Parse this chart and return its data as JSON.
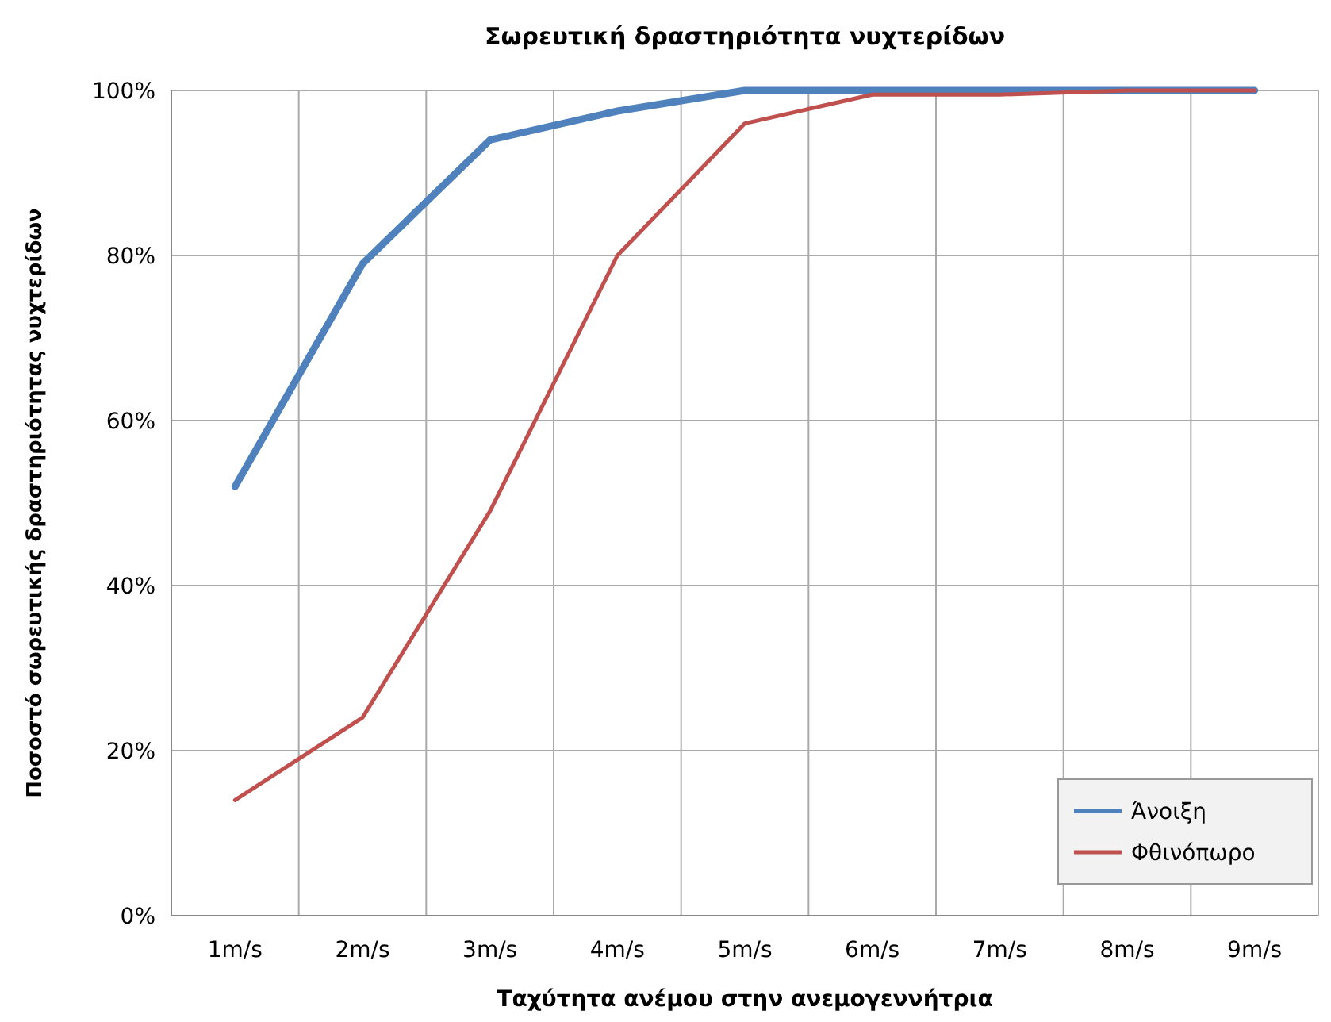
{
  "chart_data": {
    "type": "line",
    "title": "Σωρευτική δραστηριότητα νυχτερίδων",
    "xlabel": "Ταχύτητα ανέμου στην ανεμογεννήτρια",
    "ylabel": "Ποσοστό σωρευτικής δραστηριότητας νυχτερίδων",
    "categories": [
      "1m/s",
      "2m/s",
      "3m/s",
      "4m/s",
      "5m/s",
      "6m/s",
      "7m/s",
      "8m/s",
      "9m/s"
    ],
    "series": [
      {
        "name": "Άνοιξη",
        "color": "#4f81bd",
        "values": [
          52,
          79,
          94,
          97.5,
          100,
          100,
          100,
          100,
          100
        ]
      },
      {
        "name": "Φθινόπωρο",
        "color": "#c0504d",
        "values": [
          14,
          24,
          49,
          80,
          96,
          99.5,
          99.5,
          100,
          100
        ]
      }
    ],
    "ylim": [
      0,
      100
    ],
    "yticks": [
      {
        "value": 0,
        "label": "0%"
      },
      {
        "value": 20,
        "label": "20%"
      },
      {
        "value": 40,
        "label": "40%"
      },
      {
        "value": 60,
        "label": "60%"
      },
      {
        "value": 80,
        "label": "80%"
      },
      {
        "value": 100,
        "label": "100%"
      }
    ],
    "grid": true,
    "legend": "bottom right",
    "marker": "none",
    "line_style": "solid"
  }
}
